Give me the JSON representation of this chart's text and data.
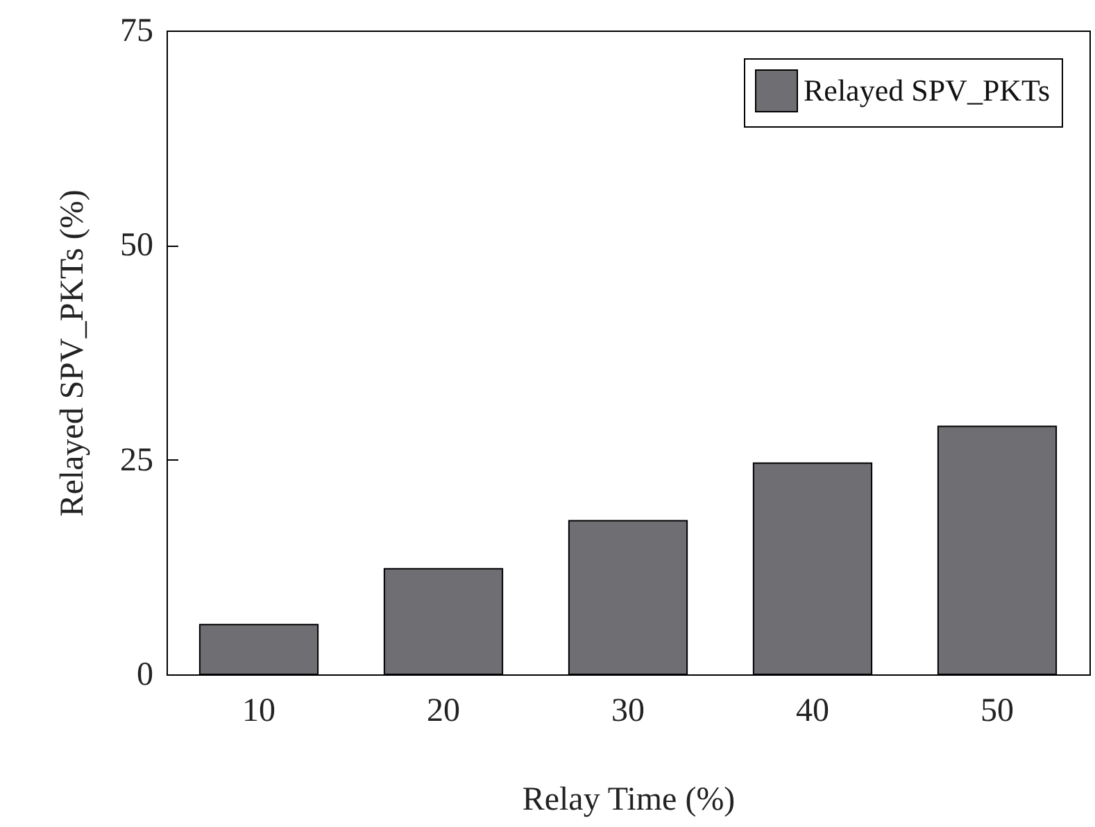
{
  "chart_data": {
    "type": "bar",
    "xlabel": "Relay Time (%)",
    "ylabel": "Relayed SPV_PKTs (%)",
    "categories": [
      "10",
      "20",
      "30",
      "40",
      "50"
    ],
    "series": [
      {
        "name": "Relayed SPV_PKTs",
        "color": "#6e6e73",
        "values": [
          5.8,
          12.3,
          17.9,
          24.6,
          28.9
        ]
      }
    ],
    "ylim": [
      0,
      75
    ],
    "yticks": [
      0,
      25,
      50,
      75
    ],
    "legend": "top right",
    "grid": false
  }
}
